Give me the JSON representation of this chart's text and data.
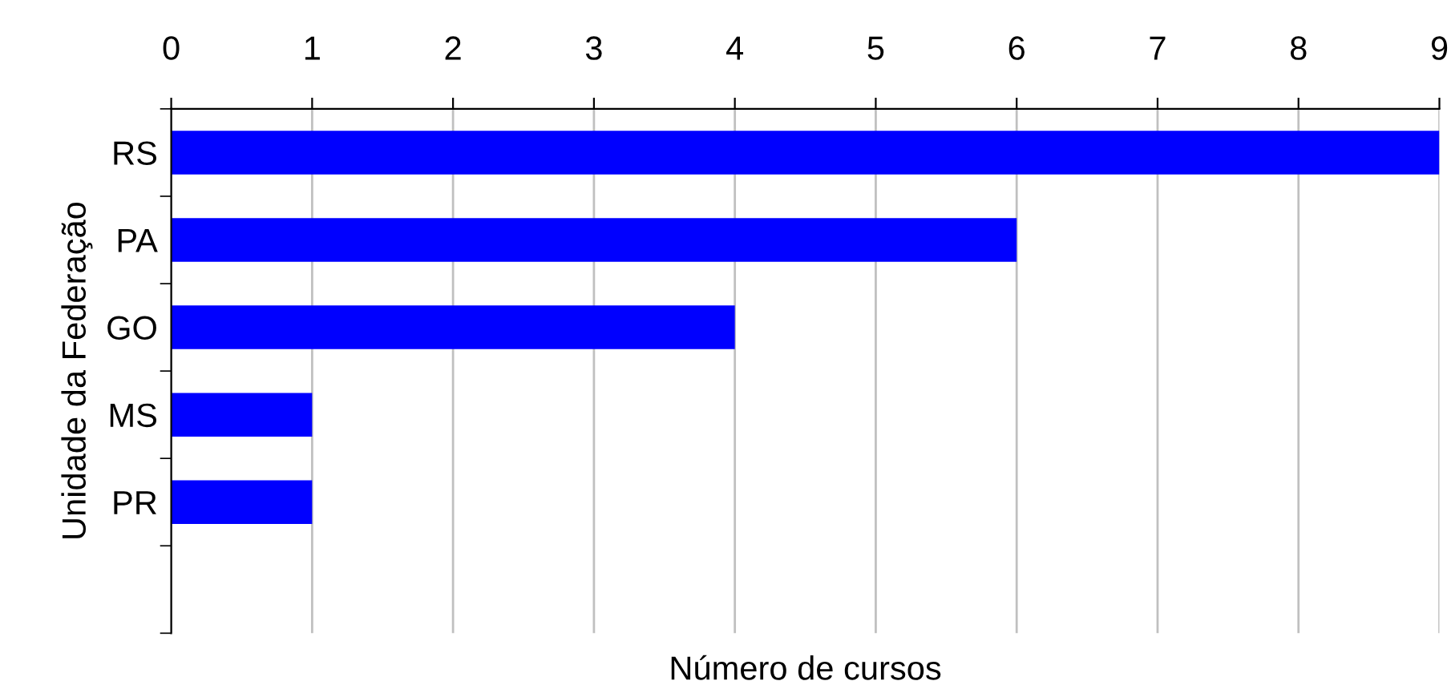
{
  "chart_data": {
    "type": "bar",
    "orientation": "horizontal",
    "xlabel": "Número de cursos",
    "ylabel": "Unidade da Federação",
    "categories": [
      "RS",
      "PA",
      "GO",
      "MS",
      "PR",
      null
    ],
    "values": [
      9,
      6,
      4,
      1,
      1,
      null
    ],
    "color": "#0000ff",
    "xlim": [
      0,
      9
    ],
    "xticks": [
      0,
      1,
      2,
      3,
      4,
      5,
      6,
      7,
      8,
      9
    ],
    "grid": "x",
    "legend": false
  }
}
